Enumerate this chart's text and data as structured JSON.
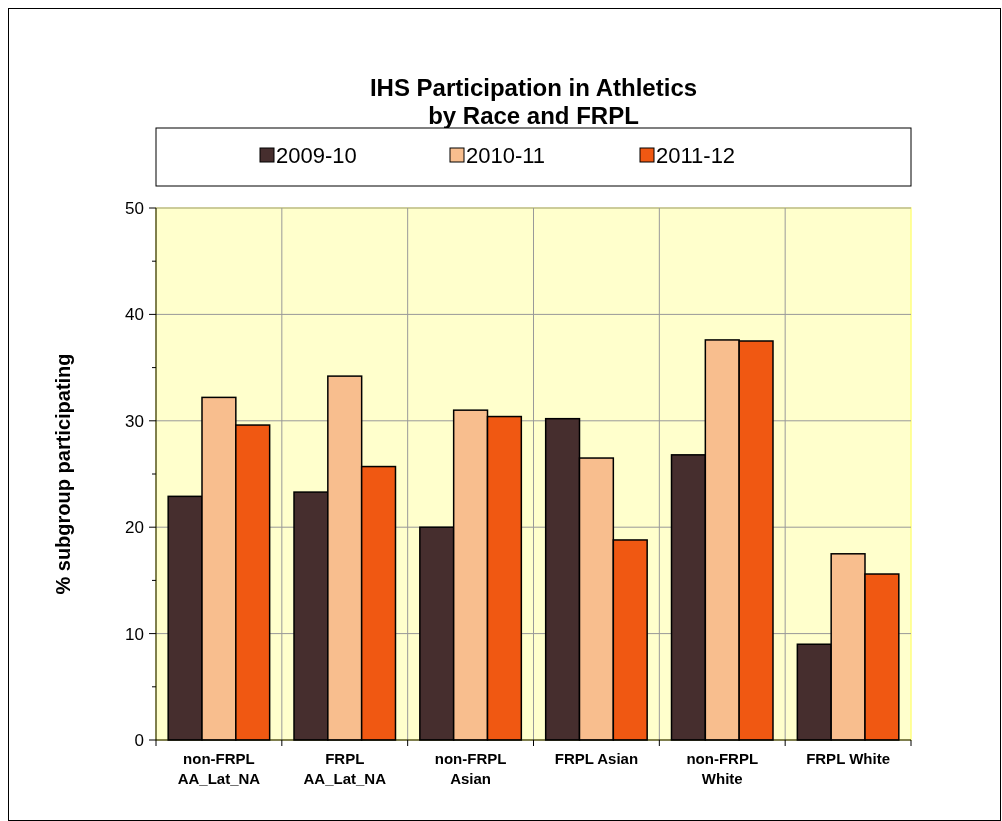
{
  "chart_data": {
    "type": "bar",
    "title": "IHS Participation in Athletics\nby Race and FRPL",
    "ylabel": "% subgroup participating",
    "categories": [
      "non-FRPL\nAA_Lat_NA",
      "FRPL\nAA_Lat_NA",
      "non-FRPL\nAsian",
      "FRPL Asian",
      "non-FRPL\nWhite",
      "FRPL White"
    ],
    "series": [
      {
        "name": "2009-10",
        "color": "#462e2e",
        "values": [
          22.9,
          23.3,
          20.0,
          30.2,
          26.8,
          9.0
        ]
      },
      {
        "name": "2010-11",
        "color": "#f8be8e",
        "values": [
          32.2,
          34.2,
          31.0,
          26.5,
          37.6,
          17.5
        ]
      },
      {
        "name": "2011-12",
        "color": "#f05812",
        "values": [
          29.6,
          25.7,
          30.4,
          18.8,
          37.5,
          15.6
        ]
      }
    ],
    "ylim": [
      0,
      50
    ],
    "yticks": [
      0,
      {
        "value": 5,
        "label": null
      },
      10,
      {
        "value": 15,
        "label": null
      },
      20,
      {
        "value": 25,
        "label": null
      },
      30,
      {
        "value": 35,
        "label": null
      },
      40,
      {
        "value": 45,
        "label": null
      },
      50
    ],
    "grid": true,
    "legend": "top"
  }
}
